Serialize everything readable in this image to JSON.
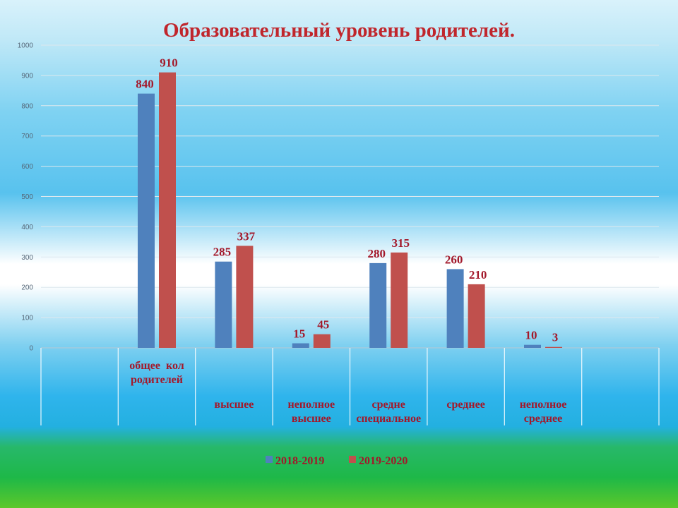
{
  "chart_data": {
    "type": "bar",
    "title": "Образовательный уровень родителей.",
    "categories": [
      [
        "общее  кол",
        "родителей"
      ],
      [
        "высшее"
      ],
      [
        "неполное",
        "высшее"
      ],
      [
        "средне",
        "специальное"
      ],
      [
        "среднее"
      ],
      [
        "неполное",
        "среднее"
      ]
    ],
    "series": [
      {
        "name": "2018-2019",
        "color": "#4f81bd",
        "values": [
          840,
          285,
          15,
          280,
          260,
          10
        ]
      },
      {
        "name": "2019-2020",
        "color": "#c0504d",
        "values": [
          910,
          337,
          45,
          315,
          210,
          3
        ]
      }
    ],
    "ylim": [
      0,
      1000
    ],
    "yticks": [
      0,
      100,
      200,
      300,
      400,
      500,
      600,
      700,
      800,
      900,
      1000
    ],
    "grid": true,
    "legend": "bottom",
    "xlabel": "",
    "ylabel": ""
  }
}
